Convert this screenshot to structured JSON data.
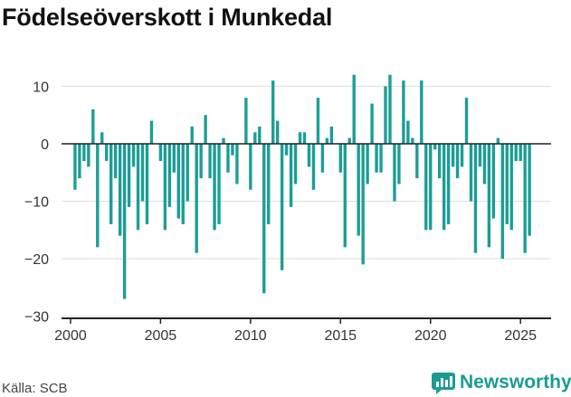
{
  "page": {
    "title": "Födelseöverskott i Munkedal",
    "source": "Källa: SCB",
    "brand": "Newsworthy"
  },
  "colors": {
    "bar": "#1a9e96",
    "axis": "#222222",
    "grid": "#dddddd",
    "brand": "#1c9b93"
  },
  "icons": [
    "newsworthy-logo-icon"
  ],
  "chart_data": {
    "type": "bar",
    "title": "Födelseöverskott i Munkedal",
    "xlabel": "",
    "ylabel": "",
    "ylim": [
      -31,
      14
    ],
    "xlim": [
      1999.5,
      2026.7
    ],
    "grid": true,
    "x_ticks": [
      2000,
      2005,
      2010,
      2015,
      2020,
      2025
    ],
    "y_ticks": [
      10,
      0,
      -10,
      -20,
      -30
    ],
    "y_tick_labels": [
      "10",
      "0",
      "−10",
      "−20",
      "−30"
    ],
    "x": [
      2000.25,
      2000.5,
      2000.75,
      2001.0,
      2001.25,
      2001.5,
      2001.75,
      2002.0,
      2002.25,
      2002.5,
      2002.75,
      2003.0,
      2003.25,
      2003.5,
      2003.75,
      2004.0,
      2004.25,
      2004.5,
      2004.75,
      2005.0,
      2005.25,
      2005.5,
      2005.75,
      2006.0,
      2006.25,
      2006.5,
      2006.75,
      2007.0,
      2007.25,
      2007.5,
      2007.75,
      2008.0,
      2008.25,
      2008.5,
      2008.75,
      2009.0,
      2009.25,
      2009.5,
      2009.75,
      2010.0,
      2010.25,
      2010.5,
      2010.75,
      2011.0,
      2011.25,
      2011.5,
      2011.75,
      2012.0,
      2012.25,
      2012.5,
      2012.75,
      2013.0,
      2013.25,
      2013.5,
      2013.75,
      2014.0,
      2014.25,
      2014.5,
      2014.75,
      2015.0,
      2015.25,
      2015.5,
      2015.75,
      2016.0,
      2016.25,
      2016.5,
      2016.75,
      2017.0,
      2017.25,
      2017.5,
      2017.75,
      2018.0,
      2018.25,
      2018.5,
      2018.75,
      2019.0,
      2019.25,
      2019.5,
      2019.75,
      2020.0,
      2020.25,
      2020.5,
      2020.75,
      2021.0,
      2021.25,
      2021.5,
      2021.75,
      2022.0,
      2022.25,
      2022.5,
      2022.75,
      2023.0,
      2023.25,
      2023.5,
      2023.75,
      2024.0,
      2024.25,
      2024.5,
      2024.75,
      2025.0,
      2025.25,
      2025.5
    ],
    "values": [
      -8,
      -6,
      -3,
      -4,
      6,
      -18,
      2,
      -3,
      -14,
      -6,
      -16,
      -27,
      -11,
      -4,
      -15,
      -10,
      -14,
      4,
      0,
      -3,
      -15,
      -11,
      -5,
      -13,
      -14,
      -10,
      3,
      -19,
      -6,
      5,
      -6,
      -15,
      -14,
      1,
      -5,
      -2,
      -7,
      0,
      8,
      -8,
      2,
      3,
      -26,
      -14,
      11,
      4,
      -22,
      -2,
      -11,
      -7,
      2,
      2,
      -4,
      -8,
      8,
      -5,
      1,
      3,
      0,
      -5,
      -18,
      1,
      12,
      -16,
      -21,
      -7,
      7,
      -5,
      -5,
      10,
      12,
      -10,
      -7,
      11,
      4,
      1,
      -6,
      11,
      -15,
      -15,
      -1,
      -6,
      -15,
      -14,
      -4,
      -6,
      -4,
      8,
      -10,
      -19,
      -4,
      -7,
      -18,
      -13,
      1,
      -20,
      -14,
      -15,
      -3,
      -3,
      -19,
      -16
    ]
  }
}
